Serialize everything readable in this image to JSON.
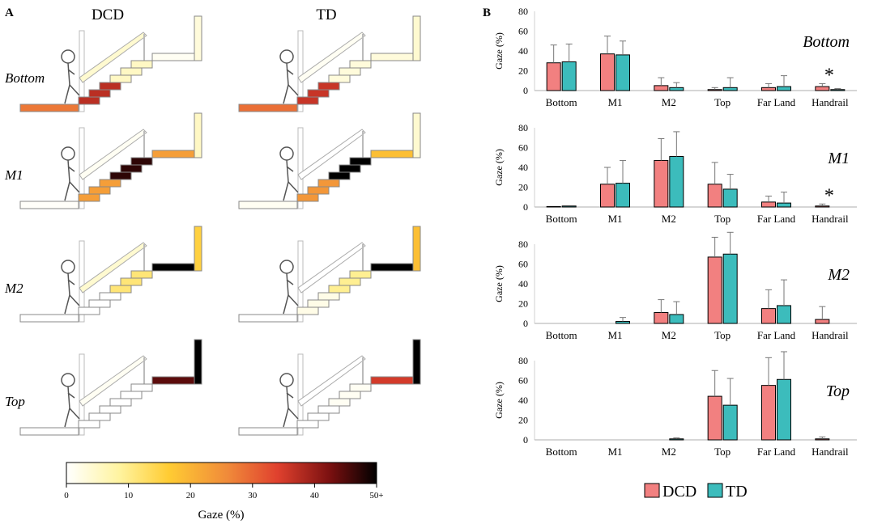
{
  "panel_a": {
    "label": "A",
    "columns": [
      "DCD",
      "TD"
    ],
    "rows": [
      "Bottom",
      "M1",
      "M2",
      "Top"
    ],
    "regions": [
      "Bottom",
      "M1",
      "M2",
      "Top",
      "Far Land",
      "Handrail"
    ],
    "colorbar": {
      "title": "Gaze (%)",
      "ticks": [
        0,
        10,
        20,
        30,
        40,
        50
      ],
      "tick_labels": [
        "0",
        "10",
        "20",
        "30",
        "40",
        "50+"
      ],
      "colors": [
        "#ffffff",
        "#fff4a0",
        "#ffcc33",
        "#f08a3a",
        "#e0412e",
        "#7a1010",
        "#000000"
      ]
    }
  },
  "panel_b": {
    "label": "B",
    "legend": [
      {
        "name": "DCD",
        "color": "#f28080"
      },
      {
        "name": "TD",
        "color": "#3cbcbc"
      }
    ]
  },
  "chart_data": [
    {
      "type": "bar",
      "title": "Bottom",
      "ylabel": "Gaze (%)",
      "ylim": [
        0,
        80
      ],
      "yticks": [
        0,
        20,
        40,
        60,
        80
      ],
      "categories": [
        "Bottom",
        "M1",
        "M2",
        "Top",
        "Far Land",
        "Handrail"
      ],
      "series": [
        {
          "name": "DCD",
          "values": [
            28,
            37,
            5,
            1,
            3,
            4
          ],
          "errors": [
            18,
            18,
            8,
            2,
            4,
            3
          ]
        },
        {
          "name": "TD",
          "values": [
            29,
            36,
            3,
            3,
            4,
            1
          ],
          "errors": [
            18,
            14,
            5,
            10,
            11,
            1
          ]
        }
      ],
      "annotations": [
        {
          "category": "Handrail",
          "text": "*"
        }
      ]
    },
    {
      "type": "bar",
      "title": "M1",
      "ylabel": "Gaze (%)",
      "ylim": [
        0,
        80
      ],
      "yticks": [
        0,
        20,
        40,
        60,
        80
      ],
      "categories": [
        "Bottom",
        "M1",
        "M2",
        "Top",
        "Far Land",
        "Handrail"
      ],
      "series": [
        {
          "name": "DCD",
          "values": [
            0.5,
            23,
            47,
            23,
            5,
            1
          ],
          "errors": [
            0,
            17,
            22,
            22,
            6,
            2
          ]
        },
        {
          "name": "TD",
          "values": [
            1,
            24,
            51,
            18,
            4,
            0
          ],
          "errors": [
            0,
            23,
            25,
            15,
            11,
            0
          ]
        }
      ],
      "annotations": [
        {
          "category": "Handrail",
          "text": "*"
        }
      ]
    },
    {
      "type": "bar",
      "title": "M2",
      "ylabel": "Gaze (%)",
      "ylim": [
        0,
        80
      ],
      "yticks": [
        0,
        20,
        40,
        60,
        80
      ],
      "categories": [
        "Bottom",
        "M1",
        "M2",
        "Top",
        "Far Land",
        "Handrail"
      ],
      "series": [
        {
          "name": "DCD",
          "values": [
            0,
            0,
            11,
            67,
            15,
            4
          ],
          "errors": [
            0,
            0,
            13,
            20,
            19,
            13
          ]
        },
        {
          "name": "TD",
          "values": [
            0,
            2,
            9,
            70,
            18,
            0
          ],
          "errors": [
            0,
            4,
            13,
            22,
            26,
            0
          ]
        }
      ],
      "annotations": []
    },
    {
      "type": "bar",
      "title": "Top",
      "ylabel": "Gaze (%)",
      "ylim": [
        0,
        80
      ],
      "yticks": [
        0,
        20,
        40,
        60,
        80
      ],
      "categories": [
        "Bottom",
        "M1",
        "M2",
        "Top",
        "Far Land",
        "Handrail"
      ],
      "series": [
        {
          "name": "DCD",
          "values": [
            0,
            0,
            0,
            44,
            55,
            1
          ],
          "errors": [
            0,
            0,
            0,
            26,
            28,
            2
          ]
        },
        {
          "name": "TD",
          "values": [
            0,
            0,
            1,
            35,
            61,
            0
          ],
          "errors": [
            0,
            0,
            1,
            27,
            28,
            0
          ]
        }
      ],
      "annotations": []
    }
  ],
  "heatmap_data": [
    {
      "row": "Bottom",
      "group": "DCD",
      "values": {
        "Bottom": 28,
        "M1": 37,
        "M2": 5,
        "Top": 1,
        "Far Land": 3,
        "Handrail": 4
      }
    },
    {
      "row": "Bottom",
      "group": "TD",
      "values": {
        "Bottom": 29,
        "M1": 36,
        "M2": 3,
        "Top": 3,
        "Far Land": 4,
        "Handrail": 1
      }
    },
    {
      "row": "M1",
      "group": "DCD",
      "values": {
        "Bottom": 0.5,
        "M1": 23,
        "M2": 47,
        "Top": 23,
        "Far Land": 5,
        "Handrail": 1
      }
    },
    {
      "row": "M1",
      "group": "TD",
      "values": {
        "Bottom": 1,
        "M1": 24,
        "M2": 51,
        "Top": 18,
        "Far Land": 4,
        "Handrail": 0
      }
    },
    {
      "row": "M2",
      "group": "DCD",
      "values": {
        "Bottom": 0,
        "M1": 0,
        "M2": 11,
        "Top": 67,
        "Far Land": 15,
        "Handrail": 4
      }
    },
    {
      "row": "M2",
      "group": "TD",
      "values": {
        "Bottom": 0,
        "M1": 2,
        "M2": 9,
        "Top": 70,
        "Far Land": 18,
        "Handrail": 0
      }
    },
    {
      "row": "Top",
      "group": "DCD",
      "values": {
        "Bottom": 0,
        "M1": 0,
        "M2": 0,
        "Top": 44,
        "Far Land": 55,
        "Handrail": 1
      }
    },
    {
      "row": "Top",
      "group": "TD",
      "values": {
        "Bottom": 0,
        "M1": 0,
        "M2": 1,
        "Top": 35,
        "Far Land": 61,
        "Handrail": 0
      }
    }
  ]
}
